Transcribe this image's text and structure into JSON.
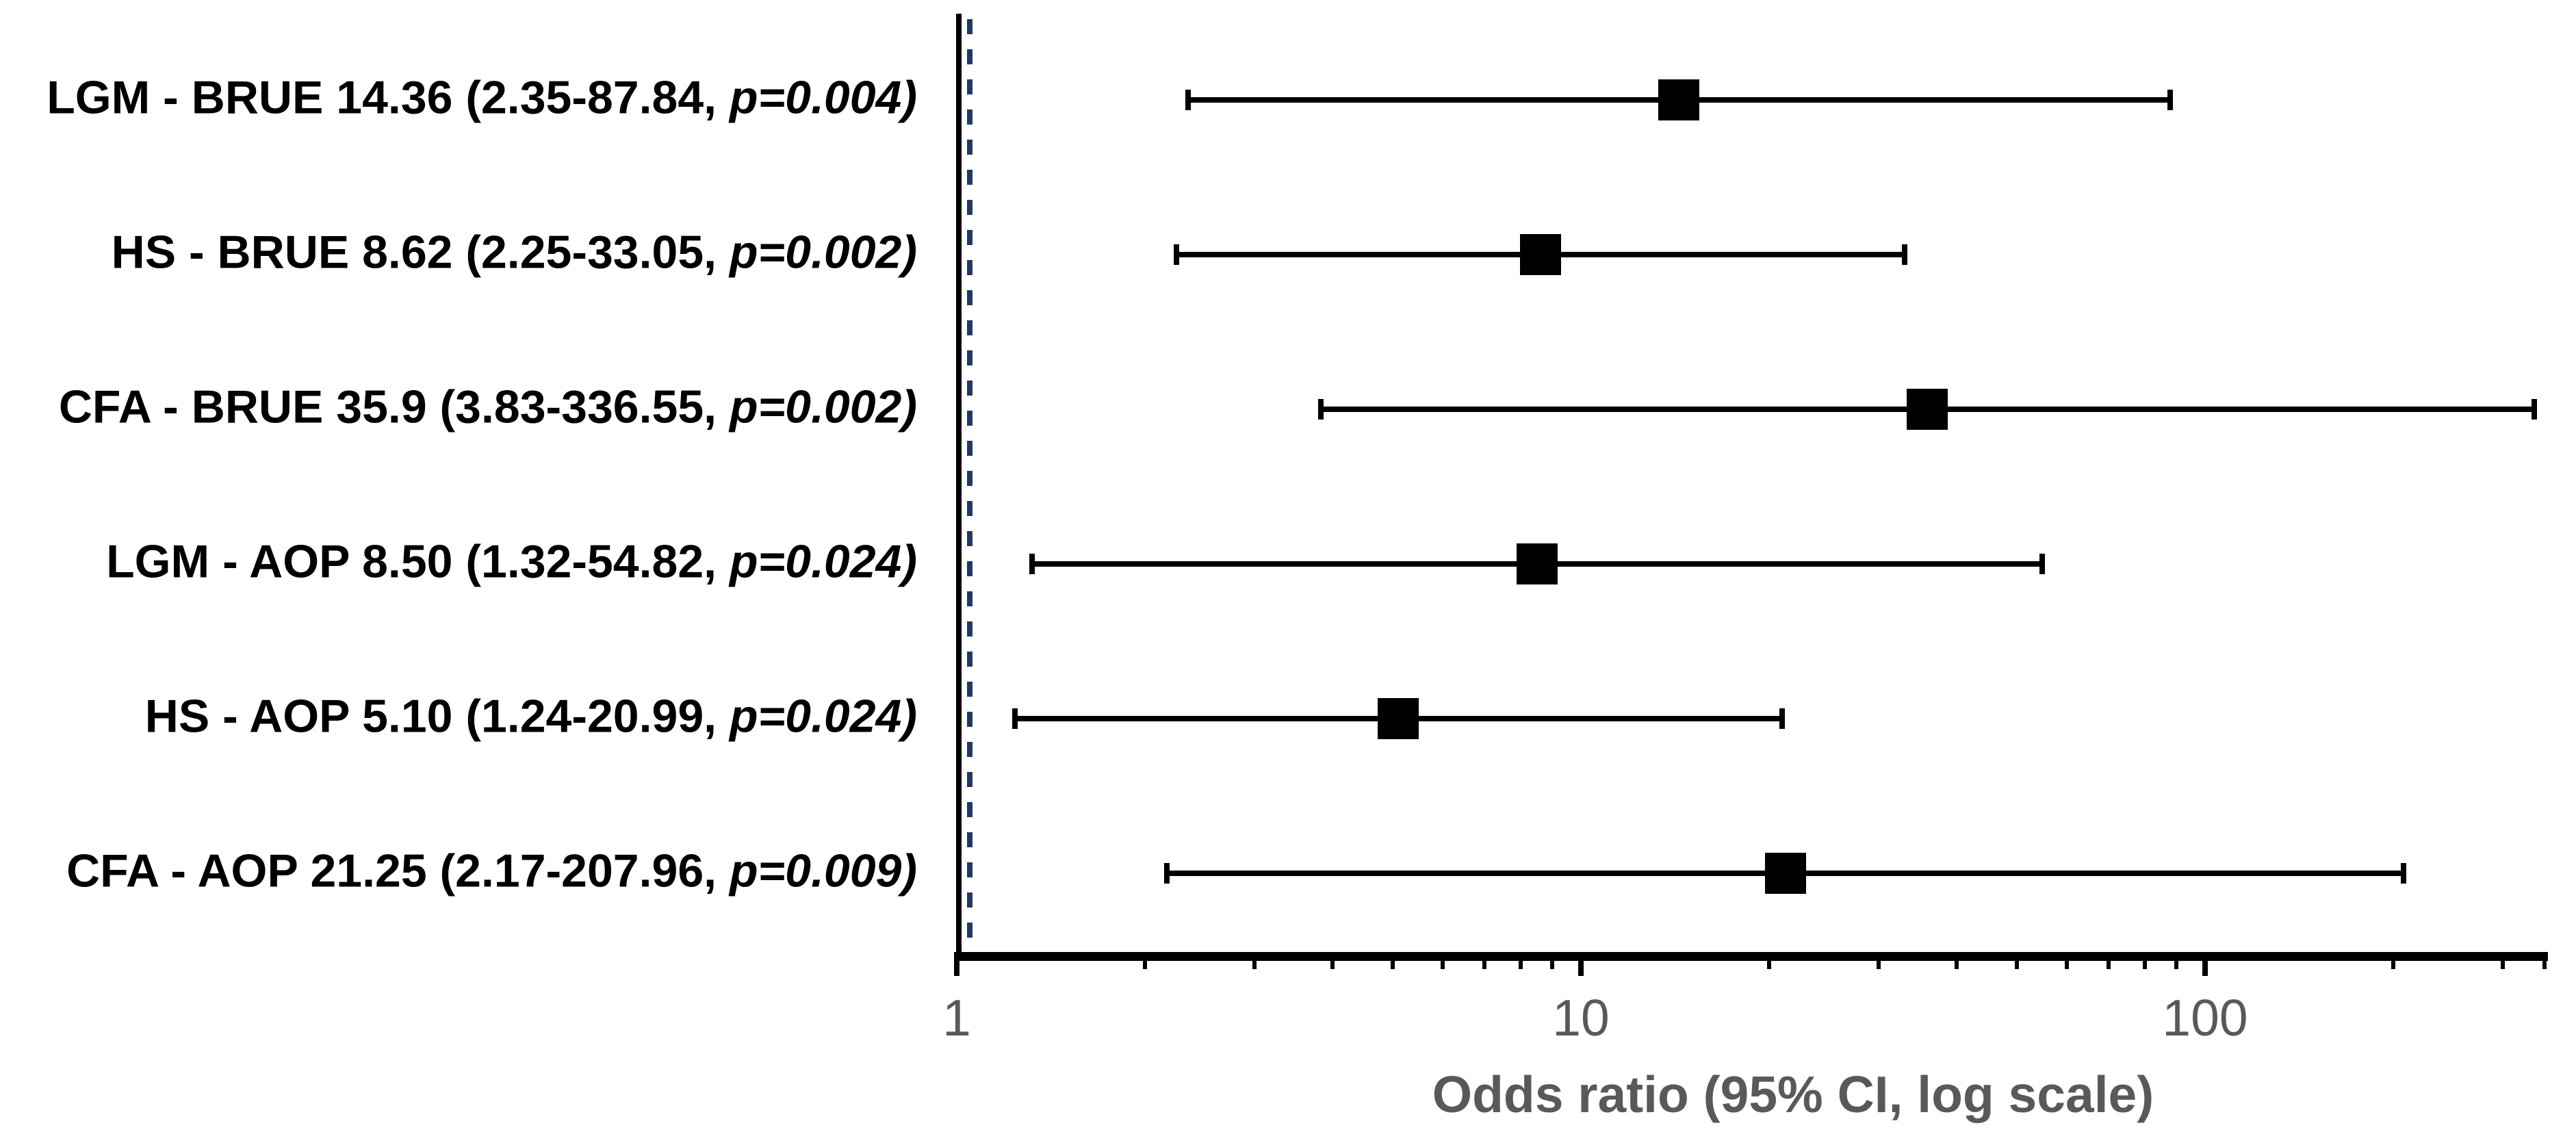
{
  "chart_data": {
    "type": "scatter",
    "subtype": "forest_plot",
    "title": "",
    "xlabel": "Odds ratio (95% CI, log scale)",
    "ylabel": "",
    "x_scale": "log",
    "xlim": [
      1,
      350
    ],
    "x_major_ticks": [
      "1",
      "10",
      "100"
    ],
    "x_minor_ticks": [
      2,
      3,
      4,
      5,
      6,
      7,
      8,
      9,
      20,
      30,
      40,
      50,
      60,
      70,
      80,
      90,
      200,
      300,
      350
    ],
    "grid": "off",
    "legend": "none",
    "reference_line": {
      "value": 1,
      "style": "dashed",
      "color": "#1f3864"
    },
    "colors": {
      "marker": "#000000",
      "whisker": "#000000",
      "axis": "#000000",
      "axis_text": "#595959",
      "reference": "#1f3864"
    },
    "rows": [
      {
        "group": "LGM",
        "outcome": "BRUE",
        "odds_ratio": 14.36,
        "ci_low": 2.35,
        "ci_high": 87.84,
        "p_value": 0.004,
        "label_main": "LGM - BRUE 14.36 (2.35-87.84, ",
        "label_p": "p=0.004)"
      },
      {
        "group": "HS",
        "outcome": "BRUE",
        "odds_ratio": 8.62,
        "ci_low": 2.25,
        "ci_high": 33.05,
        "p_value": 0.002,
        "label_main": "HS - BRUE 8.62 (2.25-33.05, ",
        "label_p": "p=0.002)"
      },
      {
        "group": "CFA",
        "outcome": "BRUE",
        "odds_ratio": 35.9,
        "ci_low": 3.83,
        "ci_high": 336.55,
        "p_value": 0.002,
        "label_main": "CFA - BRUE 35.9 (3.83-336.55, ",
        "label_p": "p=0.002)"
      },
      {
        "group": "LGM",
        "outcome": "AOP",
        "odds_ratio": 8.5,
        "ci_low": 1.32,
        "ci_high": 54.82,
        "p_value": 0.024,
        "label_main": "LGM - AOP 8.50 (1.32-54.82, ",
        "label_p": "p=0.024)"
      },
      {
        "group": "HS",
        "outcome": "AOP",
        "odds_ratio": 5.1,
        "ci_low": 1.24,
        "ci_high": 20.99,
        "p_value": 0.024,
        "label_main": "HS - AOP 5.10 (1.24-20.99, ",
        "label_p": "p=0.024)"
      },
      {
        "group": "CFA",
        "outcome": "AOP",
        "odds_ratio": 21.25,
        "ci_low": 2.17,
        "ci_high": 207.96,
        "p_value": 0.009,
        "label_main": "CFA - AOP 21.25 (2.17-207.96, ",
        "label_p": "p=0.009)"
      }
    ]
  }
}
